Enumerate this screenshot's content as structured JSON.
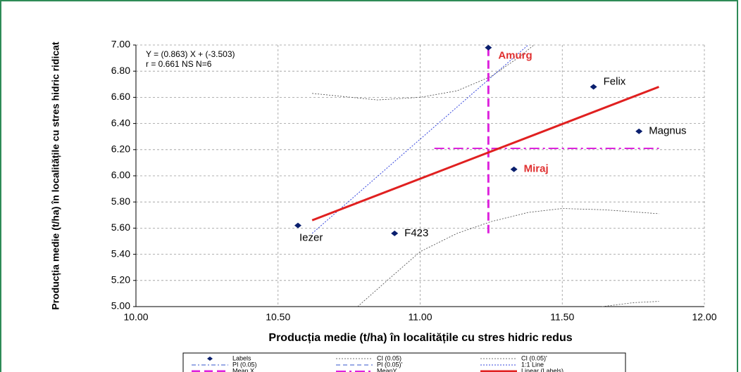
{
  "chart_data": {
    "type": "scatter",
    "x_label": "Producția medie (t/ha) în localitățile cu stres hidric redus",
    "y_label": "Producția medie (t/ha) în localitățile cu stres hidric ridicat",
    "annotations": [
      "Y = (0.863)  X + (-3.503)",
      "r = 0.661 NS     N=6"
    ],
    "xlim": [
      10,
      12
    ],
    "xticks": [
      {
        "value": 10,
        "label": "10.00"
      },
      {
        "value": 10.5,
        "label": "10.50"
      },
      {
        "value": 11,
        "label": "11.00"
      },
      {
        "value": 11.5,
        "label": "11.50"
      },
      {
        "value": 12,
        "label": "12.00"
      }
    ],
    "ylim": [
      5,
      7
    ],
    "yticks": [
      {
        "value": 5,
        "label": "5.00"
      },
      {
        "value": 5.2,
        "label": "5.20"
      },
      {
        "value": 5.4,
        "label": "5.40"
      },
      {
        "value": 5.6,
        "label": "5.60"
      },
      {
        "value": 5.8,
        "label": "5.80"
      },
      {
        "value": 6,
        "label": "6.00"
      },
      {
        "value": 6.2,
        "label": "6.20"
      },
      {
        "value": 6.4,
        "label": "6.40"
      },
      {
        "value": 6.6,
        "label": "6.60"
      },
      {
        "value": 6.8,
        "label": "6.80"
      },
      {
        "value": 7,
        "label": "7.00"
      }
    ],
    "grid": true,
    "series": [
      {
        "name": "Labels",
        "kind": "points",
        "color": "#0a1f6e",
        "x": [
          10.57,
          10.91,
          11.24,
          11.61,
          11.77,
          11.33
        ],
        "values": [
          5.62,
          5.56,
          6.98,
          6.68,
          6.34,
          6.05
        ],
        "point_labels": [
          "Iezer",
          "F423",
          "Amurg",
          "Felix",
          "Magnus",
          "Miraj"
        ],
        "label_colors": [
          "#000000",
          "#000000",
          "#e03030",
          "#000000",
          "#000000",
          "#e03030"
        ]
      },
      {
        "name": "CI (0.05)",
        "kind": "line",
        "color": "#444444",
        "width": 0.8,
        "dash": "2,2",
        "x": [
          10.62,
          10.85,
          11.0,
          11.13,
          11.25,
          11.35,
          11.4,
          null,
          10.78,
          10.9,
          11.0,
          11.13,
          11.25,
          11.38,
          11.5,
          11.65,
          11.84
        ],
        "values": [
          6.63,
          6.58,
          6.6,
          6.65,
          6.76,
          6.91,
          7.0,
          null,
          5.0,
          5.23,
          5.42,
          5.56,
          5.65,
          5.72,
          5.75,
          5.74,
          5.71
        ]
      },
      {
        "name": "CI (0.05)'",
        "kind": "line",
        "color": "#444444",
        "width": 0.8,
        "dash": "2,2",
        "x": [
          11.64,
          11.75,
          11.84
        ],
        "values": [
          5.0,
          5.03,
          5.04
        ]
      },
      {
        "name": "PI (0.05)",
        "kind": "line",
        "color": "#3355cc",
        "width": 1,
        "dash": "6,3,2,3"
      },
      {
        "name": "PI (0.05)'",
        "kind": "line",
        "color": "#3355cc",
        "width": 1,
        "dash": "6,4"
      },
      {
        "name": "1:1 Line",
        "kind": "line",
        "color": "#3344dd",
        "width": 1,
        "dash": "2,2",
        "x": [
          10.62,
          11.38
        ],
        "values": [
          5.56,
          7.0
        ]
      },
      {
        "name": "Mean X",
        "kind": "line",
        "color": "#dd22dd",
        "width": 3,
        "dash": "12,6",
        "x": [
          11.24,
          11.24
        ],
        "values": [
          6.98,
          5.55
        ]
      },
      {
        "name": "MeanY",
        "kind": "line",
        "color": "#dd22dd",
        "width": 2,
        "dash": "14,5,3,5",
        "x": [
          11.05,
          11.84
        ],
        "values": [
          6.21,
          6.21
        ]
      },
      {
        "name": "Linear (Labels)",
        "kind": "line",
        "color": "#e02020",
        "width": 3,
        "dash": "",
        "x": [
          10.62,
          11.84
        ],
        "values": [
          5.66,
          6.68
        ]
      }
    ]
  }
}
